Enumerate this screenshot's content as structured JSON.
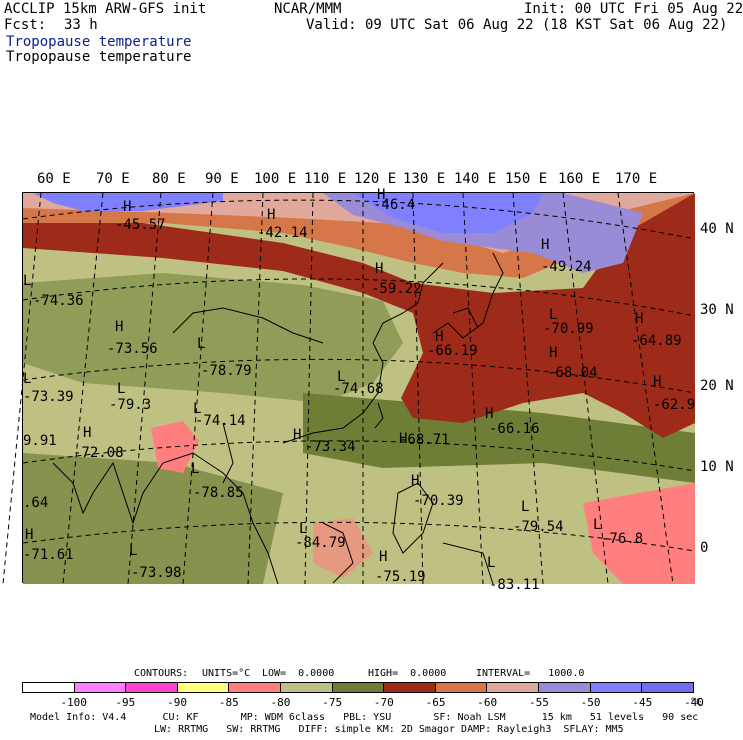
{
  "header": {
    "model": "ACCLIP 15km ARW-GFS init",
    "org": "NCAR/MMM",
    "init": "Init: 00 UTC Fri 05 Aug 22",
    "fcst_label": "Fcst:",
    "fcst_value": "33 h",
    "valid": "Valid: 09 UTC Sat 06 Aug 22 (18 KST Sat 06 Aug 22)",
    "field_title_1": "Tropopause temperature",
    "field_title_2": "Tropopause temperature"
  },
  "longitude_labels": [
    "60 E",
    "70 E",
    "80 E",
    "90 E",
    "100 E",
    "110 E",
    "120 E",
    "130 E",
    "140 E",
    "150 E",
    "160 E",
    "170 E"
  ],
  "latitude_labels": [
    "40 N",
    "30 N",
    "20 N",
    "10 N",
    "0"
  ],
  "map_labels": [
    {
      "kind": "H",
      "text": "H"
    },
    {
      "kind": "value",
      "text": "-45.57"
    },
    {
      "kind": "H",
      "text": "H"
    },
    {
      "kind": "value",
      "text": "-42.14"
    },
    {
      "kind": "H",
      "text": "H"
    },
    {
      "kind": "value",
      "text": "-46.4"
    },
    {
      "kind": "L",
      "text": "L"
    },
    {
      "kind": "value",
      "text": "-74.36"
    },
    {
      "kind": "H",
      "text": "H"
    },
    {
      "kind": "value",
      "text": "-59.22"
    },
    {
      "kind": "H",
      "text": "H"
    },
    {
      "kind": "value",
      "text": "-49.24"
    },
    {
      "kind": "H",
      "text": "H"
    },
    {
      "kind": "value",
      "text": "-73.56"
    },
    {
      "kind": "L",
      "text": "L"
    },
    {
      "kind": "value",
      "text": "-78.79"
    },
    {
      "kind": "L",
      "text": "L"
    },
    {
      "kind": "value",
      "text": "-70.99"
    },
    {
      "kind": "H",
      "text": "H"
    },
    {
      "kind": "value",
      "text": "-64.89"
    },
    {
      "kind": "H",
      "text": "H"
    },
    {
      "kind": "value",
      "text": "-66.19"
    },
    {
      "kind": "L",
      "text": "L"
    },
    {
      "kind": "value",
      "text": "-73.39"
    },
    {
      "kind": "L",
      "text": "L"
    },
    {
      "kind": "value",
      "text": "-74.68"
    },
    {
      "kind": "H",
      "text": "H"
    },
    {
      "kind": "value",
      "text": "-68.04"
    },
    {
      "kind": "L",
      "text": "L"
    },
    {
      "kind": "value",
      "text": "-79.3"
    },
    {
      "kind": "L",
      "text": "L"
    },
    {
      "kind": "value",
      "text": "-74.14"
    },
    {
      "kind": "H",
      "text": "H"
    },
    {
      "kind": "value",
      "text": "-62.9"
    },
    {
      "kind": "value",
      "text": "9.91"
    },
    {
      "kind": "H",
      "text": "H"
    },
    {
      "kind": "value",
      "text": "-72.08"
    },
    {
      "kind": "H",
      "text": "H"
    },
    {
      "kind": "value",
      "text": "-73.34"
    },
    {
      "kind": "H",
      "text": "H"
    },
    {
      "kind": "value",
      "text": "-68.71"
    },
    {
      "kind": "H",
      "text": "H"
    },
    {
      "kind": "value",
      "text": "-66.16"
    },
    {
      "kind": "L",
      "text": "L"
    },
    {
      "kind": "value",
      "text": "-78.85"
    },
    {
      "kind": "H",
      "text": "H"
    },
    {
      "kind": "value",
      "text": "-70.39"
    },
    {
      "kind": "value",
      "text": ".64"
    },
    {
      "kind": "L",
      "text": "L"
    },
    {
      "kind": "value",
      "text": "-79.54"
    },
    {
      "kind": "L",
      "text": "L"
    },
    {
      "kind": "value",
      "text": "-76.8"
    },
    {
      "kind": "H",
      "text": "H"
    },
    {
      "kind": "value",
      "text": "-71.61"
    },
    {
      "kind": "L",
      "text": "L"
    },
    {
      "kind": "value",
      "text": "-84.79"
    },
    {
      "kind": "L",
      "text": "L"
    },
    {
      "kind": "value",
      "text": "-73.98"
    },
    {
      "kind": "H",
      "text": "H"
    },
    {
      "kind": "value",
      "text": "-75.19"
    },
    {
      "kind": "L",
      "text": "L"
    },
    {
      "kind": "value",
      "text": "-83.11"
    }
  ],
  "contours_line": {
    "contours": "CONTOURS:",
    "units": "UNITS=°C",
    "low": "LOW=  0.0000",
    "high": "HIGH=  0.0000",
    "interval": "INTERVAL=   1000.0"
  },
  "colorbar": {
    "colors": [
      "#ffffff",
      "#ff80ff",
      "#ff44cc",
      "#ffff80",
      "#ff7f7f",
      "#bfc183",
      "#6e7e36",
      "#9e2a1a",
      "#d6774a",
      "#e1a99c",
      "#9a8bd6",
      "#8080ff",
      "#6f6fef"
    ],
    "ticks": [
      "-100",
      "-95",
      "-90",
      "-85",
      "-80",
      "-75",
      "-70",
      "-65",
      "-60",
      "-55",
      "-50",
      "-45",
      "-40"
    ],
    "unit": "°C"
  },
  "footer": {
    "line1": "Model Info: V4.4      CU: KF       MP: WDM 6class   PBL: YSU       SF: Noah LSM      15 km   51 levels   90 sec",
    "line2": "LW: RRTMG   SW: RRTMG   DIFF: simple KM: 2D Smagor DAMP: Rayleigh3  SFLAY: MM5"
  }
}
